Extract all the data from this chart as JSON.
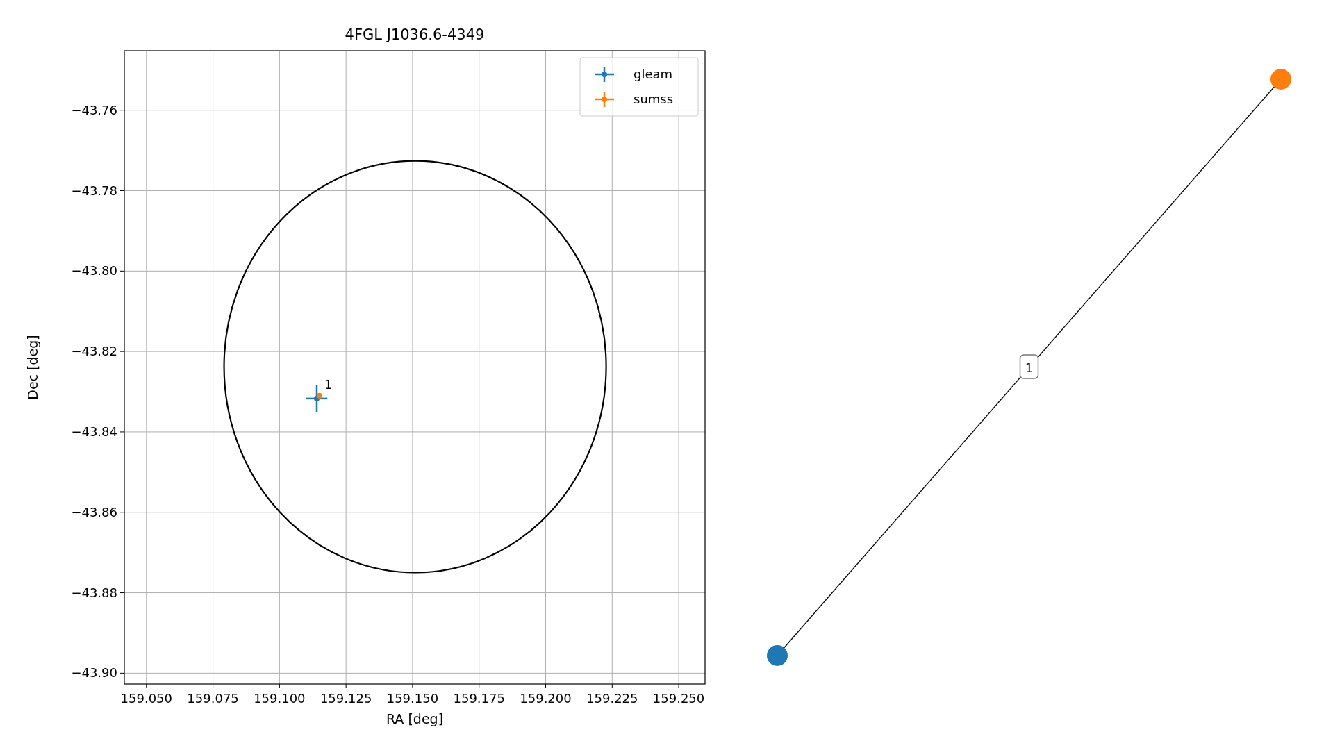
{
  "chart_data": [
    {
      "type": "scatter",
      "title": "4FGL J1036.6-4349",
      "xlabel": "RA [deg]",
      "ylabel": "Dec [deg]",
      "xlim": [
        159.0417,
        159.2599
      ],
      "ylim": [
        -43.9027,
        -43.7452
      ],
      "xticks": [
        {
          "value": 159.05,
          "label": "159.050"
        },
        {
          "value": 159.075,
          "label": "159.075"
        },
        {
          "value": 159.1,
          "label": "159.100"
        },
        {
          "value": 159.125,
          "label": "159.125"
        },
        {
          "value": 159.15,
          "label": "159.150"
        },
        {
          "value": 159.175,
          "label": "159.175"
        },
        {
          "value": 159.2,
          "label": "159.200"
        },
        {
          "value": 159.225,
          "label": "159.225"
        },
        {
          "value": 159.25,
          "label": "159.250"
        }
      ],
      "yticks": [
        {
          "value": -43.9,
          "label": "−43.90"
        },
        {
          "value": -43.88,
          "label": "−43.88"
        },
        {
          "value": -43.86,
          "label": "−43.86"
        },
        {
          "value": -43.84,
          "label": "−43.84"
        },
        {
          "value": -43.82,
          "label": "−43.82"
        },
        {
          "value": -43.8,
          "label": "−43.80"
        },
        {
          "value": -43.78,
          "label": "−43.78"
        },
        {
          "value": -43.76,
          "label": "−43.76"
        }
      ],
      "grid": true,
      "legend": "top right",
      "marker": "circle",
      "annotations": [
        {
          "text": "1",
          "x": 159.115,
          "y": -43.831
        }
      ],
      "series": [
        {
          "name": "gleam",
          "color": "#1f77b4",
          "x": [
            159.114
          ],
          "values": [
            -43.8317
          ],
          "xerrors": [
            0.004
          ],
          "errors": [
            0.0034
          ]
        },
        {
          "name": "sumss",
          "color": "#ff7f0e",
          "x": [
            159.115
          ],
          "values": [
            -43.831
          ],
          "xerrors": [
            0.0005
          ],
          "errors": [
            0.0005
          ]
        }
      ]
    },
    {
      "type": "other",
      "annotations": [
        "1"
      ]
    }
  ]
}
